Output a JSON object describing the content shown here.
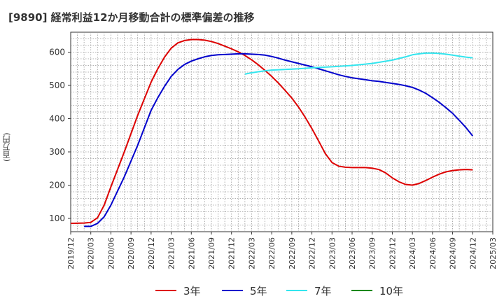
{
  "title": "[9890]  経常利益12か月移動合計の標準偏差の推移",
  "colors": {
    "3年": "#dd0000",
    "5年": "#0000cc",
    "7年": "#33e5ee",
    "10年": "#008800"
  },
  "chart_data": {
    "type": "line",
    "title": "[9890]  経常利益12か月移動合計の標準偏差の推移",
    "xlabel": "",
    "ylabel": "(百万円)",
    "ylim": [
      60,
      660
    ],
    "yticks": [
      100,
      200,
      300,
      400,
      500,
      600
    ],
    "xticks": [
      "2019/12",
      "2020/03",
      "2020/06",
      "2020/09",
      "2020/12",
      "2021/03",
      "2021/06",
      "2021/09",
      "2021/12",
      "2022/03",
      "2022/06",
      "2022/09",
      "2022/12",
      "2023/03",
      "2023/06",
      "2023/09",
      "2023/12",
      "2024/03",
      "2024/06",
      "2024/09",
      "2024/12",
      "2025/03"
    ],
    "grid": true,
    "legend_position": "bottom",
    "series": [
      {
        "name": "3年",
        "color": "#dd0000",
        "points": [
          [
            "2019/12",
            85
          ],
          [
            "2020/02",
            86
          ],
          [
            "2020/03",
            88
          ],
          [
            "2020/04",
            102
          ],
          [
            "2020/05",
            140
          ],
          [
            "2020/06",
            195
          ],
          [
            "2020/08",
            300
          ],
          [
            "2020/10",
            410
          ],
          [
            "2020/12",
            510
          ],
          [
            "2021/01",
            550
          ],
          [
            "2021/02",
            585
          ],
          [
            "2021/03",
            612
          ],
          [
            "2021/04",
            628
          ],
          [
            "2021/05",
            635
          ],
          [
            "2021/06",
            638
          ],
          [
            "2021/07",
            638
          ],
          [
            "2021/08",
            636
          ],
          [
            "2021/09",
            632
          ],
          [
            "2021/10",
            626
          ],
          [
            "2021/11",
            618
          ],
          [
            "2021/12",
            610
          ],
          [
            "2022/01",
            601
          ],
          [
            "2022/02",
            590
          ],
          [
            "2022/03",
            577
          ],
          [
            "2022/04",
            562
          ],
          [
            "2022/05",
            545
          ],
          [
            "2022/06",
            527
          ],
          [
            "2022/07",
            507
          ],
          [
            "2022/08",
            485
          ],
          [
            "2022/09",
            462
          ],
          [
            "2022/10",
            435
          ],
          [
            "2022/11",
            404
          ],
          [
            "2022/12",
            370
          ],
          [
            "2023/01",
            333
          ],
          [
            "2023/02",
            295
          ],
          [
            "2023/03",
            268
          ],
          [
            "2023/04",
            257
          ],
          [
            "2023/05",
            254
          ],
          [
            "2023/06",
            253
          ],
          [
            "2023/08",
            253
          ],
          [
            "2023/09",
            251
          ],
          [
            "2023/10",
            247
          ],
          [
            "2023/11",
            237
          ],
          [
            "2023/12",
            222
          ],
          [
            "2024/01",
            210
          ],
          [
            "2024/02",
            202
          ],
          [
            "2024/03",
            200
          ],
          [
            "2024/04",
            205
          ],
          [
            "2024/05",
            214
          ],
          [
            "2024/06",
            224
          ],
          [
            "2024/07",
            233
          ],
          [
            "2024/08",
            240
          ],
          [
            "2024/09",
            244
          ],
          [
            "2024/10",
            246
          ],
          [
            "2024/11",
            247
          ],
          [
            "2024/12",
            246
          ]
        ]
      },
      {
        "name": "5年",
        "color": "#0000cc",
        "points": [
          [
            "2020/02",
            76
          ],
          [
            "2020/03",
            76
          ],
          [
            "2020/04",
            85
          ],
          [
            "2020/05",
            105
          ],
          [
            "2020/06",
            140
          ],
          [
            "2020/08",
            225
          ],
          [
            "2020/10",
            320
          ],
          [
            "2020/12",
            425
          ],
          [
            "2021/01",
            463
          ],
          [
            "2021/02",
            497
          ],
          [
            "2021/03",
            527
          ],
          [
            "2021/04",
            548
          ],
          [
            "2021/05",
            563
          ],
          [
            "2021/06",
            573
          ],
          [
            "2021/07",
            580
          ],
          [
            "2021/08",
            586
          ],
          [
            "2021/09",
            590
          ],
          [
            "2021/10",
            592
          ],
          [
            "2021/11",
            593
          ],
          [
            "2021/12",
            594
          ],
          [
            "2022/01",
            595
          ],
          [
            "2022/02",
            595
          ],
          [
            "2022/03",
            594
          ],
          [
            "2022/04",
            593
          ],
          [
            "2022/05",
            591
          ],
          [
            "2022/06",
            587
          ],
          [
            "2022/07",
            582
          ],
          [
            "2022/08",
            576
          ],
          [
            "2022/09",
            571
          ],
          [
            "2022/10",
            566
          ],
          [
            "2022/11",
            561
          ],
          [
            "2022/12",
            556
          ],
          [
            "2023/01",
            550
          ],
          [
            "2023/02",
            544
          ],
          [
            "2023/03",
            538
          ],
          [
            "2023/04",
            532
          ],
          [
            "2023/05",
            527
          ],
          [
            "2023/06",
            523
          ],
          [
            "2023/07",
            520
          ],
          [
            "2023/08",
            517
          ],
          [
            "2023/09",
            514
          ],
          [
            "2023/10",
            512
          ],
          [
            "2023/11",
            509
          ],
          [
            "2023/12",
            506
          ],
          [
            "2024/01",
            503
          ],
          [
            "2024/02",
            499
          ],
          [
            "2024/03",
            494
          ],
          [
            "2024/04",
            486
          ],
          [
            "2024/05",
            476
          ],
          [
            "2024/06",
            463
          ],
          [
            "2024/07",
            449
          ],
          [
            "2024/08",
            433
          ],
          [
            "2024/09",
            416
          ],
          [
            "2024/10",
            395
          ],
          [
            "2024/11",
            373
          ],
          [
            "2024/12",
            348
          ]
        ]
      },
      {
        "name": "7年",
        "color": "#33e5ee",
        "points": [
          [
            "2022/02",
            534
          ],
          [
            "2022/03",
            538
          ],
          [
            "2022/04",
            541
          ],
          [
            "2022/05",
            544
          ],
          [
            "2022/06",
            546
          ],
          [
            "2022/08",
            548
          ],
          [
            "2022/10",
            550
          ],
          [
            "2022/12",
            553
          ],
          [
            "2023/03",
            556
          ],
          [
            "2023/06",
            560
          ],
          [
            "2023/09",
            566
          ],
          [
            "2023/12",
            576
          ],
          [
            "2024/02",
            586
          ],
          [
            "2024/03",
            592
          ],
          [
            "2024/04",
            595
          ],
          [
            "2024/05",
            597
          ],
          [
            "2024/06",
            597
          ],
          [
            "2024/07",
            596
          ],
          [
            "2024/08",
            594
          ],
          [
            "2024/09",
            591
          ],
          [
            "2024/10",
            588
          ],
          [
            "2024/11",
            585
          ],
          [
            "2024/12",
            583
          ]
        ]
      },
      {
        "name": "10年",
        "color": "#008800",
        "points": []
      }
    ]
  }
}
